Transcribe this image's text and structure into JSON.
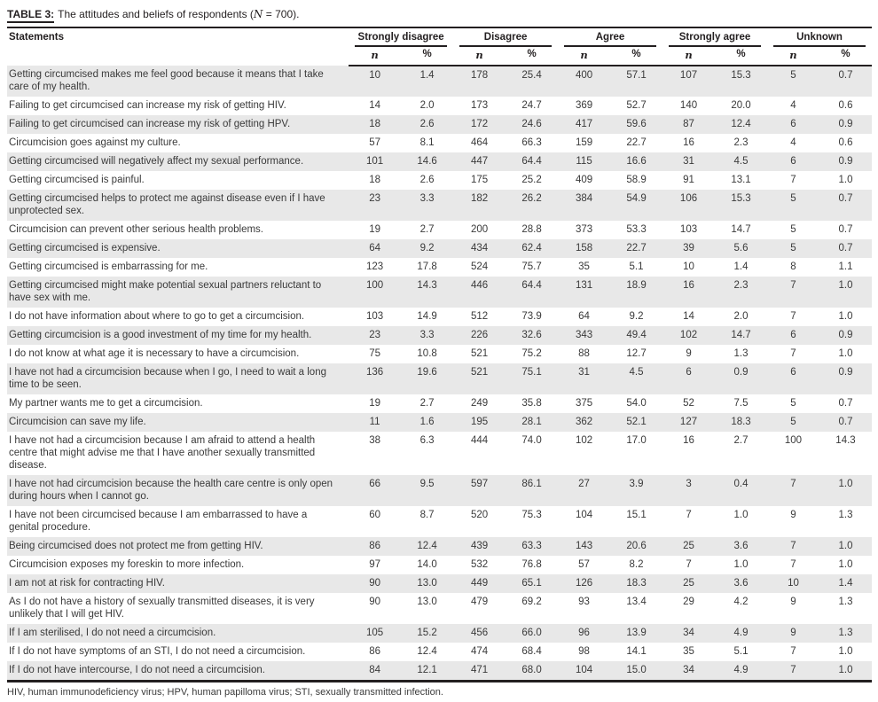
{
  "caption": {
    "label": "TABLE 3:",
    "text_before_n": "The attitudes and beliefs of respondents (",
    "n_symbol": "N",
    "text_after_n": " = 700)."
  },
  "table": {
    "statements_header": "Statements",
    "groups": [
      {
        "label": "Strongly disagree"
      },
      {
        "label": "Disagree"
      },
      {
        "label": "Agree"
      },
      {
        "label": "Strongly agree"
      },
      {
        "label": "Unknown"
      }
    ],
    "sub_n": "n",
    "sub_pct": "%",
    "rows": [
      {
        "statement": "Getting circumcised makes me feel good because it means that I take care of my health.",
        "values": [
          "10",
          "1.4",
          "178",
          "25.4",
          "400",
          "57.1",
          "107",
          "15.3",
          "5",
          "0.7"
        ]
      },
      {
        "statement": "Failing to get circumcised can increase my risk of getting HIV.",
        "values": [
          "14",
          "2.0",
          "173",
          "24.7",
          "369",
          "52.7",
          "140",
          "20.0",
          "4",
          "0.6"
        ]
      },
      {
        "statement": "Failing to get circumcised can increase my risk of getting HPV.",
        "values": [
          "18",
          "2.6",
          "172",
          "24.6",
          "417",
          "59.6",
          "87",
          "12.4",
          "6",
          "0.9"
        ]
      },
      {
        "statement": "Circumcision goes against my culture.",
        "values": [
          "57",
          "8.1",
          "464",
          "66.3",
          "159",
          "22.7",
          "16",
          "2.3",
          "4",
          "0.6"
        ]
      },
      {
        "statement": "Getting circumcised will negatively affect my sexual performance.",
        "values": [
          "101",
          "14.6",
          "447",
          "64.4",
          "115",
          "16.6",
          "31",
          "4.5",
          "6",
          "0.9"
        ]
      },
      {
        "statement": "Getting circumcised is painful.",
        "values": [
          "18",
          "2.6",
          "175",
          "25.2",
          "409",
          "58.9",
          "91",
          "13.1",
          "7",
          "1.0"
        ]
      },
      {
        "statement": "Getting circumcised helps to protect me against disease even if I have unprotected sex.",
        "values": [
          "23",
          "3.3",
          "182",
          "26.2",
          "384",
          "54.9",
          "106",
          "15.3",
          "5",
          "0.7"
        ]
      },
      {
        "statement": "Circumcision can prevent other serious health problems.",
        "values": [
          "19",
          "2.7",
          "200",
          "28.8",
          "373",
          "53.3",
          "103",
          "14.7",
          "5",
          "0.7"
        ]
      },
      {
        "statement": "Getting circumcised is expensive.",
        "values": [
          "64",
          "9.2",
          "434",
          "62.4",
          "158",
          "22.7",
          "39",
          "5.6",
          "5",
          "0.7"
        ]
      },
      {
        "statement": "Getting circumcised is embarrassing for me.",
        "values": [
          "123",
          "17.8",
          "524",
          "75.7",
          "35",
          "5.1",
          "10",
          "1.4",
          "8",
          "1.1"
        ]
      },
      {
        "statement": "Getting circumcised might make potential sexual partners reluctant to have sex with me.",
        "values": [
          "100",
          "14.3",
          "446",
          "64.4",
          "131",
          "18.9",
          "16",
          "2.3",
          "7",
          "1.0"
        ]
      },
      {
        "statement": "I do not have information about where to go to get a circumcision.",
        "values": [
          "103",
          "14.9",
          "512",
          "73.9",
          "64",
          "9.2",
          "14",
          "2.0",
          "7",
          "1.0"
        ]
      },
      {
        "statement": "Getting circumcision is a good investment of my time for my health.",
        "values": [
          "23",
          "3.3",
          "226",
          "32.6",
          "343",
          "49.4",
          "102",
          "14.7",
          "6",
          "0.9"
        ]
      },
      {
        "statement": "I do not know at what age it is necessary to have a circumcision.",
        "values": [
          "75",
          "10.8",
          "521",
          "75.2",
          "88",
          "12.7",
          "9",
          "1.3",
          "7",
          "1.0"
        ]
      },
      {
        "statement": "I have not had a circumcision because when I go, I need to wait a long time to be seen.",
        "values": [
          "136",
          "19.6",
          "521",
          "75.1",
          "31",
          "4.5",
          "6",
          "0.9",
          "6",
          "0.9"
        ]
      },
      {
        "statement": "My partner wants me to get a circumcision.",
        "values": [
          "19",
          "2.7",
          "249",
          "35.8",
          "375",
          "54.0",
          "52",
          "7.5",
          "5",
          "0.7"
        ]
      },
      {
        "statement": "Circumcision can save my life.",
        "values": [
          "11",
          "1.6",
          "195",
          "28.1",
          "362",
          "52.1",
          "127",
          "18.3",
          "5",
          "0.7"
        ]
      },
      {
        "statement": "I have not had a circumcision because I am afraid to attend a health centre that might advise me that I have another sexually transmitted disease.",
        "values": [
          "38",
          "6.3",
          "444",
          "74.0",
          "102",
          "17.0",
          "16",
          "2.7",
          "100",
          "14.3"
        ]
      },
      {
        "statement": "I have not had circumcision because the health care centre is only open during hours when I cannot go.",
        "values": [
          "66",
          "9.5",
          "597",
          "86.1",
          "27",
          "3.9",
          "3",
          "0.4",
          "7",
          "1.0"
        ]
      },
      {
        "statement": "I have not been circumcised because I am embarrassed to have a genital procedure.",
        "values": [
          "60",
          "8.7",
          "520",
          "75.3",
          "104",
          "15.1",
          "7",
          "1.0",
          "9",
          "1.3"
        ]
      },
      {
        "statement": "Being circumcised does not protect me from getting HIV.",
        "values": [
          "86",
          "12.4",
          "439",
          "63.3",
          "143",
          "20.6",
          "25",
          "3.6",
          "7",
          "1.0"
        ]
      },
      {
        "statement": "Circumcision exposes my foreskin to more infection.",
        "values": [
          "97",
          "14.0",
          "532",
          "76.8",
          "57",
          "8.2",
          "7",
          "1.0",
          "7",
          "1.0"
        ]
      },
      {
        "statement": "I am not at risk for contracting HIV.",
        "values": [
          "90",
          "13.0",
          "449",
          "65.1",
          "126",
          "18.3",
          "25",
          "3.6",
          "10",
          "1.4"
        ]
      },
      {
        "statement": "As I do not have a history of sexually transmitted diseases, it is very unlikely that I will get HIV.",
        "values": [
          "90",
          "13.0",
          "479",
          "69.2",
          "93",
          "13.4",
          "29",
          "4.2",
          "9",
          "1.3"
        ]
      },
      {
        "statement": "If I am sterilised, I do not need a circumcision.",
        "values": [
          "105",
          "15.2",
          "456",
          "66.0",
          "96",
          "13.9",
          "34",
          "4.9",
          "9",
          "1.3"
        ]
      },
      {
        "statement": "If I do not have symptoms of an STI, I do not need a circumcision.",
        "values": [
          "86",
          "12.4",
          "474",
          "68.4",
          "98",
          "14.1",
          "35",
          "5.1",
          "7",
          "1.0"
        ]
      },
      {
        "statement": "If I do not have intercourse, I do not need a circumcision.",
        "values": [
          "84",
          "12.1",
          "471",
          "68.0",
          "104",
          "15.0",
          "34",
          "4.9",
          "7",
          "1.0"
        ]
      }
    ]
  },
  "footnote": "HIV, human immunodeficiency virus; HPV, human papilloma virus; STI, sexually transmitted infection.",
  "colors": {
    "stripe": "#e8e8e8",
    "rule": "#231f20",
    "text": "#3a3a3a"
  }
}
